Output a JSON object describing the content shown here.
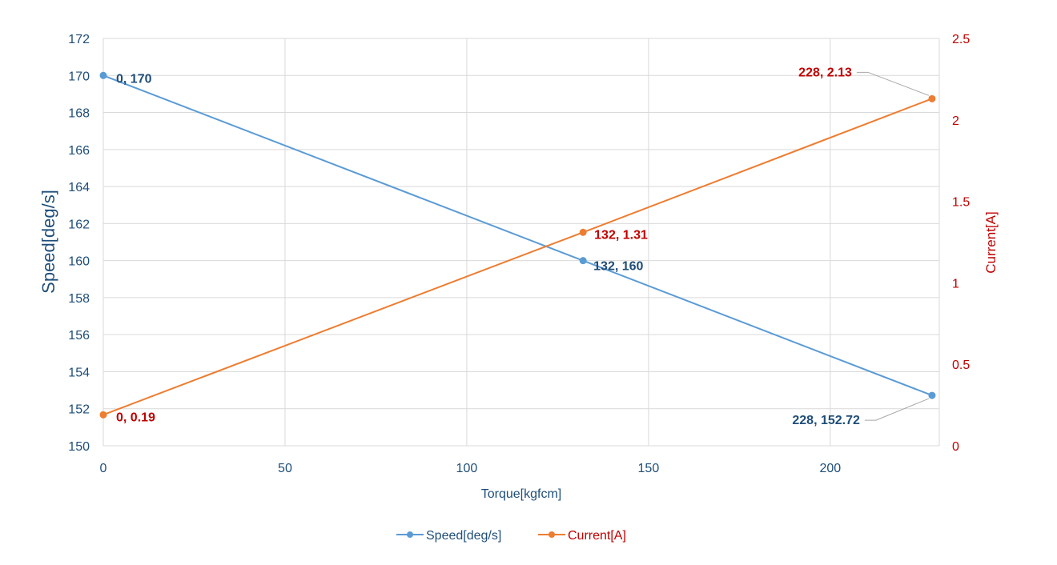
{
  "chart_data": {
    "type": "line",
    "xlabel": "Torque[kgfcm]",
    "xlim": [
      0,
      230
    ],
    "x_ticks": [
      0,
      50,
      100,
      150,
      200
    ],
    "y_left": {
      "label": "Speed[deg/s]",
      "lim": [
        150,
        172
      ],
      "ticks": [
        150,
        152,
        154,
        156,
        158,
        160,
        162,
        164,
        166,
        168,
        170,
        172
      ],
      "color": "#1f4e79"
    },
    "y_right": {
      "label": "Current[A]",
      "lim": [
        0,
        2.5
      ],
      "ticks": [
        "0",
        "0.5",
        "1",
        "1.5",
        "2",
        "2.5"
      ],
      "color": "#c00000"
    },
    "grid": true,
    "legend": "bottom",
    "series": [
      {
        "name": "Speed[deg/s]",
        "axis": "left",
        "color": "#5b9bd5",
        "label_color": "#1f4e79",
        "points": [
          {
            "x": 0,
            "y": 170,
            "label": "0, 170"
          },
          {
            "x": 132,
            "y": 160,
            "label": "132, 160"
          },
          {
            "x": 228,
            "y": 152.72,
            "label": "228, 152.72"
          }
        ]
      },
      {
        "name": "Current[A]",
        "axis": "right",
        "color": "#ed7d31",
        "label_color": "#c00000",
        "points": [
          {
            "x": 0,
            "y": 0.19,
            "label": "0, 0.19"
          },
          {
            "x": 132,
            "y": 1.31,
            "label": "132, 1.31"
          },
          {
            "x": 228,
            "y": 2.13,
            "label": "228, 2.13"
          }
        ]
      }
    ]
  }
}
